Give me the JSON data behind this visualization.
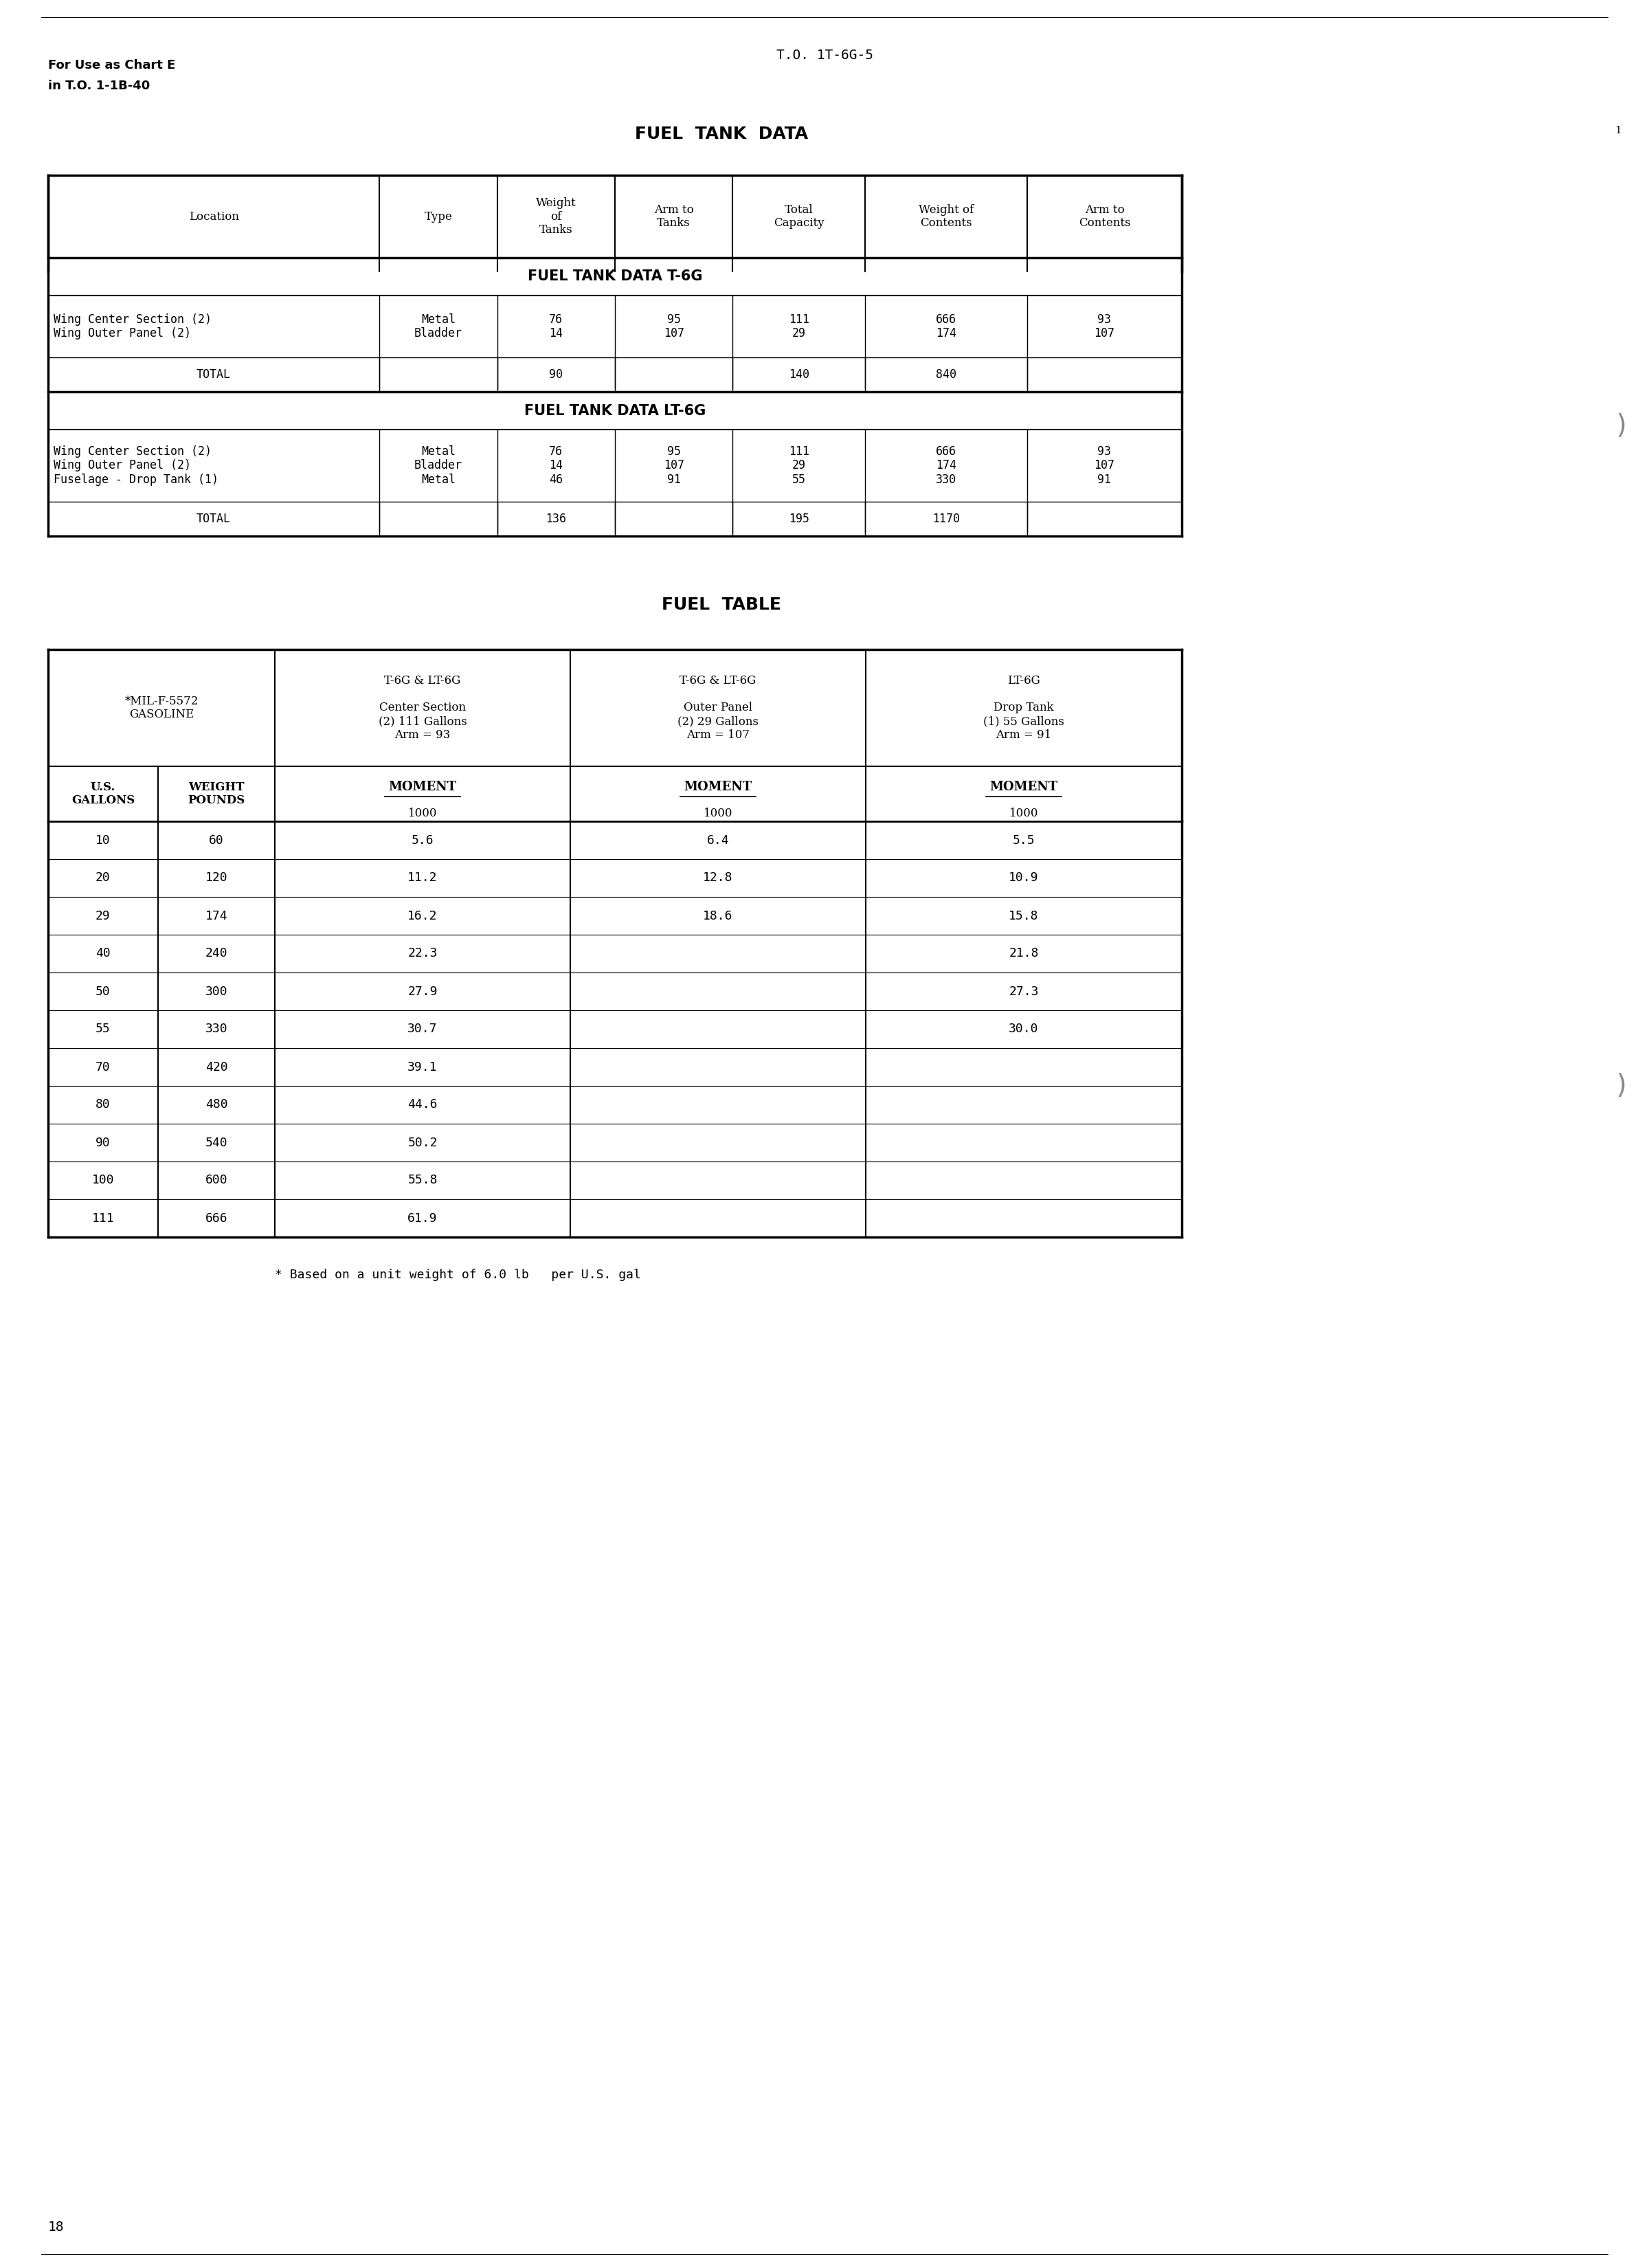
{
  "page_title": "T.O. 1T-6G-5",
  "top_left_text": "For Use as Chart E\nin T.O. 1-1B-40",
  "section1_title": "FUEL  TANK  DATA",
  "table1_title": "FUEL TANK DATA T-6G",
  "table2_title": "FUEL TANK DATA LT-6G",
  "section2_title": "FUEL  TABLE",
  "footer_note": "* Based on a unit weight of 6.0 lb   per U.S. gal",
  "page_number": "18",
  "table1_headers": [
    "Location",
    "Type",
    "Weight\nof\nTanks",
    "Arm to\nTanks",
    "Total\nCapacity",
    "Weight of\nContents",
    "Arm to\nContents"
  ],
  "table1_t6g_rows": [
    [
      "Wing Center Section (2)\nWing Outer Panel (2)",
      "Metal\nBladder",
      "76\n14",
      "95\n107",
      "111\n29",
      "666\n174",
      "93\n107"
    ],
    [
      "TOTAL",
      "",
      "90",
      "",
      "140",
      "840",
      ""
    ]
  ],
  "table1_lt6g_rows": [
    [
      "Wing Center Section (2)\nWing Outer Panel (2)\nFuselage - Drop Tank (1)",
      "Metal\nBladder\nMetal",
      "76\n14\n46",
      "95\n107\n91",
      "111\n29\n55",
      "666\n174\n330",
      "93\n107\n91"
    ],
    [
      "TOTAL",
      "",
      "136",
      "",
      "195",
      "1170",
      ""
    ]
  ],
  "fuel_table_col_headers": [
    "*MIL-F-5572\nGASOLINE",
    "T-6G & LT-6G\n\nCenter Section\n(2) 111 Gallons\nArm = 93",
    "T-6G & LT-6G\n\nOuter Panel\n(2) 29 Gallons\nArm = 107",
    "LT-6G\n\nDrop Tank\n(1) 55 Gallons\nArm = 91"
  ],
  "fuel_table_data": [
    [
      "10",
      "60",
      "5.6",
      "6.4",
      "5.5"
    ],
    [
      "20",
      "120",
      "11.2",
      "12.8",
      "10.9"
    ],
    [
      "29",
      "174",
      "16.2",
      "18.6",
      "15.8"
    ],
    [
      "40",
      "240",
      "22.3",
      "",
      "21.8"
    ],
    [
      "50",
      "300",
      "27.9",
      "",
      "27.3"
    ],
    [
      "55",
      "330",
      "30.7",
      "",
      "30.0"
    ],
    [
      "70",
      "420",
      "39.1",
      "",
      ""
    ],
    [
      "80",
      "480",
      "44.6",
      "",
      ""
    ],
    [
      "90",
      "540",
      "50.2",
      "",
      ""
    ],
    [
      "100",
      "600",
      "55.8",
      "",
      ""
    ],
    [
      "111",
      "666",
      "61.9",
      "",
      ""
    ]
  ],
  "bg_color": "#ffffff",
  "text_color": "#000000",
  "line_color": "#000000"
}
